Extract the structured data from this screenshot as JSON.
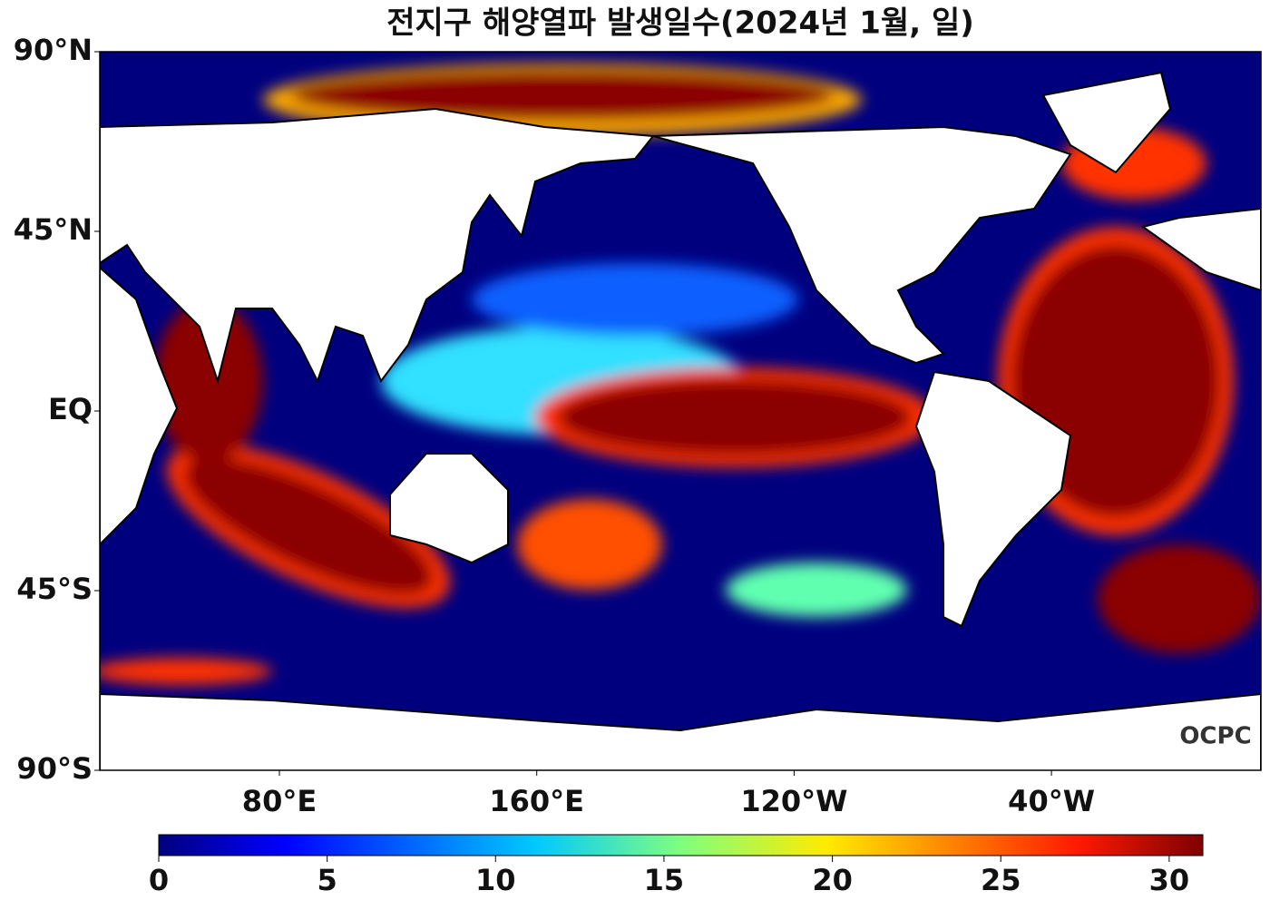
{
  "title": "전지구 해양열파 발생일수(2024년 1월, 일)",
  "map": {
    "lat_labels": [
      "90°N",
      "45°N",
      "EQ",
      "45°S",
      "90°S"
    ],
    "lon_labels": [
      "80°E",
      "160°E",
      "120°W",
      "40°W"
    ],
    "logo": "OCPC"
  },
  "colorbar": {
    "range": [
      0,
      31
    ],
    "ticks": [
      0,
      5,
      10,
      15,
      20,
      25,
      30
    ]
  }
}
